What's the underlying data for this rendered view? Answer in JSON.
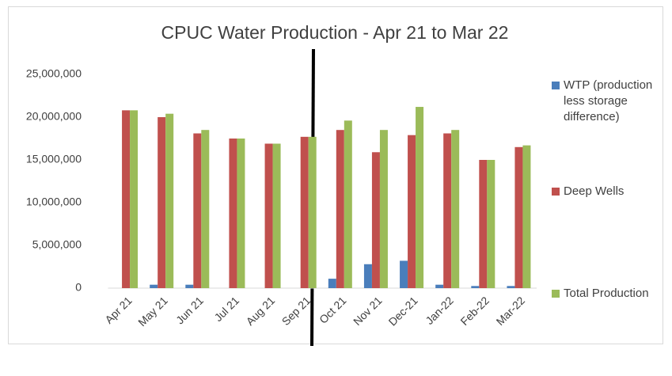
{
  "chart_data": {
    "type": "bar",
    "title": "CPUC Water Production - Apr 21 to Mar 22",
    "categories": [
      "Apr 21",
      "May 21",
      "Jun 21",
      "Jul 21",
      "Aug 21",
      "Sep 21",
      "Oct 21",
      "Nov 21",
      "Dec-21",
      "Jan-22",
      "Feb-22",
      "Mar-22"
    ],
    "series": [
      {
        "name": "WTP (production less storage difference)",
        "color": "#4a7ebb",
        "values": [
          0,
          400000,
          400000,
          0,
          0,
          0,
          1100000,
          2800000,
          3200000,
          400000,
          250000,
          250000
        ]
      },
      {
        "name": "Deep Wells",
        "color": "#c0504d",
        "values": [
          20800000,
          20000000,
          18100000,
          17500000,
          16900000,
          17700000,
          18500000,
          15900000,
          17900000,
          18100000,
          15000000,
          16500000
        ]
      },
      {
        "name": "Total Production",
        "color": "#9bbb59",
        "values": [
          20800000,
          20400000,
          18500000,
          17500000,
          16900000,
          17700000,
          19600000,
          18500000,
          21200000,
          18500000,
          15000000,
          16700000
        ]
      }
    ],
    "ylim": [
      0,
      25000000
    ],
    "yticks": [
      0,
      {
        "value": 5000000,
        "label": "5,000,000"
      },
      {
        "value": 10000000,
        "label": "10,000,000"
      },
      {
        "value": 15000000,
        "label": "15,000,000"
      },
      {
        "value": 20000000,
        "label": "20,000,000"
      },
      {
        "value": 25000000,
        "label": "25,000,000"
      }
    ],
    "grid": false
  }
}
